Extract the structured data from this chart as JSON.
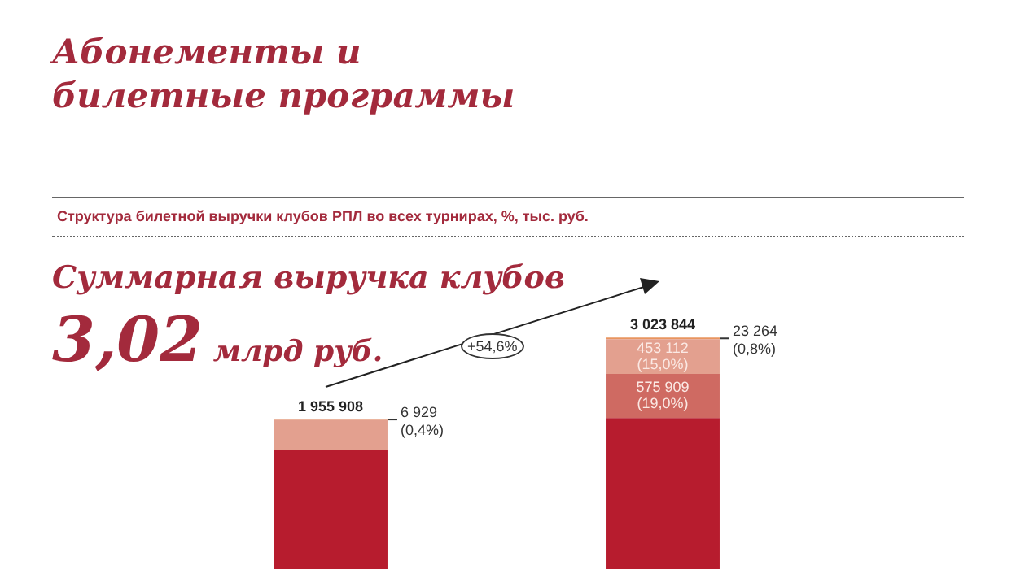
{
  "chart_data": {
    "type": "bar",
    "title": "Абонементы и билетные программы",
    "subtitle": "Структура билетной выручки клубов РПЛ во всех турнирах, %, тыс. руб.",
    "annotations": [
      "Суммарная выручка клубов",
      "3,02 млрд руб.",
      "+54,6%"
    ],
    "categories": [
      null,
      null
    ],
    "stacked": true,
    "ylim": [
      0,
      3100000
    ],
    "tick_labels": false,
    "legend": false,
    "series": [
      {
        "color": "#b71c2e",
        "values": [
          1557979,
          1971559
        ],
        "value_labels": [
          null,
          null
        ]
      },
      {
        "color": "#cf6a62",
        "values": [
          null,
          575909
        ],
        "value_labels": [
          null,
          "575 909\n(19,0%)"
        ]
      },
      {
        "color": "#e3a08f",
        "values": [
          391000,
          453112
        ],
        "value_labels": [
          null,
          "453 112\n(15,0%)"
        ]
      },
      {
        "color": "#e8955f",
        "values": [
          6929,
          23264
        ],
        "value_labels": [
          "6 929\n(0,4%)",
          "23 264\n(0,8%)"
        ]
      }
    ],
    "totals": [
      "1 955 908",
      "3 023 844"
    ]
  }
}
